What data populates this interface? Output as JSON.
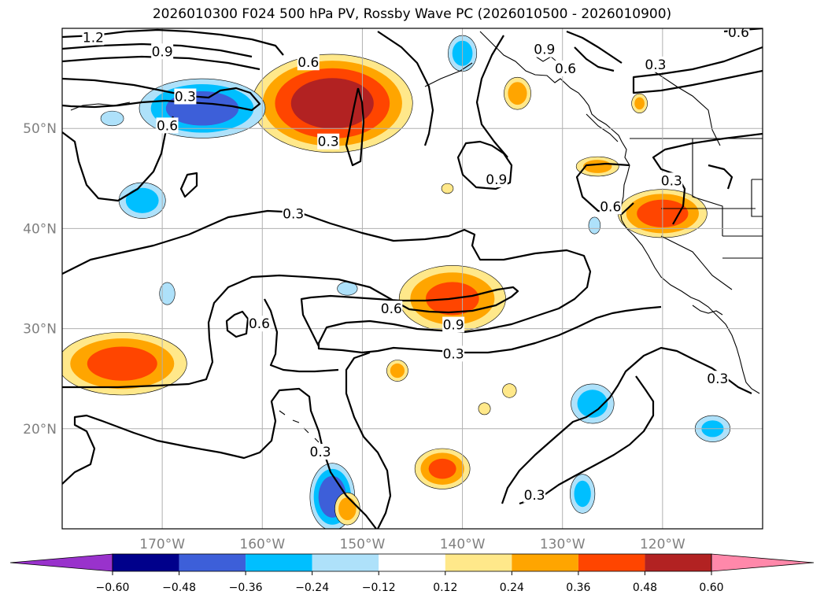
{
  "chart_data": {
    "type": "heatmap",
    "title": "2026010300 F024 500 hPa PV, Rossby Wave PC (2026010500 - 2026010900)",
    "map": {
      "lon_range": [
        -180,
        -110
      ],
      "lat_range": [
        10,
        60
      ]
    },
    "lon_ticks": [
      {
        "value": -170,
        "label": "170°W"
      },
      {
        "value": -160,
        "label": "160°W"
      },
      {
        "value": -150,
        "label": "150°W"
      },
      {
        "value": -140,
        "label": "140°W"
      },
      {
        "value": -130,
        "label": "130°W"
      },
      {
        "value": -120,
        "label": "120°W"
      }
    ],
    "lat_ticks": [
      {
        "value": 50,
        "label": "50°N"
      },
      {
        "value": 40,
        "label": "40°N"
      },
      {
        "value": 30,
        "label": "30°N"
      },
      {
        "value": 20,
        "label": "20°N"
      }
    ],
    "colorbar": {
      "levels": [
        -0.6,
        -0.48,
        -0.36,
        -0.24,
        -0.12,
        0.12,
        0.24,
        0.36,
        0.48,
        0.6
      ],
      "labels": [
        "−0.60",
        "−0.48",
        "−0.36",
        "−0.24",
        "−0.12",
        "0.12",
        "0.24",
        "0.36",
        "0.48",
        "0.60"
      ],
      "colors": [
        "#9932cc",
        "#00008b",
        "#3d5fd9",
        "#00bfff",
        "#aee1fa",
        "#ffffff",
        "#ffe88a",
        "#ffa500",
        "#ff4500",
        "#b22222",
        "#ff88aa"
      ],
      "extend": "both"
    },
    "contour_labels": [
      {
        "text": "1.2",
        "lon": -176.9,
        "lat": 59.1
      },
      {
        "text": "0.9",
        "lon": -170.0,
        "lat": 57.7
      },
      {
        "text": "0.6",
        "lon": -155.4,
        "lat": 56.6
      },
      {
        "text": "0.3",
        "lon": -167.7,
        "lat": 53.2
      },
      {
        "text": "0.6",
        "lon": -169.5,
        "lat": 50.3
      },
      {
        "text": "0.3",
        "lon": -153.4,
        "lat": 48.7
      },
      {
        "text": "0.9",
        "lon": -131.8,
        "lat": 57.9
      },
      {
        "text": "0.6",
        "lon": -129.7,
        "lat": 56.0
      },
      {
        "text": "0.3",
        "lon": -120.7,
        "lat": 56.4
      },
      {
        "text": "0.6",
        "lon": -112.4,
        "lat": 59.6
      },
      {
        "text": "0.9",
        "lon": -136.6,
        "lat": 44.9
      },
      {
        "text": "0.3",
        "lon": -119.1,
        "lat": 44.8
      },
      {
        "text": "0.6",
        "lon": -125.2,
        "lat": 42.2
      },
      {
        "text": "0.3",
        "lon": -156.9,
        "lat": 41.5
      },
      {
        "text": "0.6",
        "lon": -160.3,
        "lat": 30.5
      },
      {
        "text": "0.6",
        "lon": -147.1,
        "lat": 32.0
      },
      {
        "text": "0.9",
        "lon": -140.9,
        "lat": 30.4
      },
      {
        "text": "0.3",
        "lon": -140.9,
        "lat": 27.5
      },
      {
        "text": "0.3",
        "lon": -154.2,
        "lat": 17.7
      },
      {
        "text": "0.3",
        "lon": -132.8,
        "lat": 13.4
      },
      {
        "text": "0.3",
        "lon": -114.5,
        "lat": 25.0
      }
    ],
    "anomalies": [
      {
        "lon": -153,
        "lat": 52.5,
        "value": 0.55,
        "rx": 8.5,
        "ry": 5.2
      },
      {
        "lon": -166,
        "lat": 52.0,
        "value": -0.42,
        "rx": 6.8,
        "ry": 3.2
      },
      {
        "lon": -174,
        "lat": 26.5,
        "value": 0.4,
        "rx": 7.0,
        "ry": 3.4
      },
      {
        "lon": -141,
        "lat": 33.0,
        "value": 0.38,
        "rx": 5.8,
        "ry": 3.6
      },
      {
        "lon": -120,
        "lat": 41.5,
        "value": 0.42,
        "rx": 4.8,
        "ry": 2.6
      },
      {
        "lon": -153,
        "lat": 13.2,
        "value": -0.45,
        "rx": 2.4,
        "ry": 3.6
      },
      {
        "lon": -142,
        "lat": 16.0,
        "value": 0.38,
        "rx": 3.0,
        "ry": 2.2
      },
      {
        "lon": -172,
        "lat": 42.8,
        "value": -0.3,
        "rx": 2.6,
        "ry": 2.0
      },
      {
        "lon": -140,
        "lat": 57.5,
        "value": -0.3,
        "rx": 1.6,
        "ry": 2.0
      },
      {
        "lon": -127,
        "lat": 22.5,
        "value": -0.3,
        "rx": 2.4,
        "ry": 2.2
      },
      {
        "lon": -128,
        "lat": 13.5,
        "value": -0.28,
        "rx": 1.4,
        "ry": 2.2
      },
      {
        "lon": -115,
        "lat": 20.0,
        "value": -0.26,
        "rx": 2.0,
        "ry": 1.5
      },
      {
        "lon": -134.5,
        "lat": 53.5,
        "value": 0.3,
        "rx": 1.5,
        "ry": 1.8
      },
      {
        "lon": -126.5,
        "lat": 46.2,
        "value": 0.28,
        "rx": 2.4,
        "ry": 1.1
      },
      {
        "lon": -151.5,
        "lat": 12.0,
        "value": 0.3,
        "rx": 1.4,
        "ry": 1.8
      },
      {
        "lon": -146.5,
        "lat": 25.8,
        "value": 0.28,
        "rx": 1.2,
        "ry": 1.2
      },
      {
        "lon": -175,
        "lat": 51.0,
        "value": -0.18,
        "rx": 1.4,
        "ry": 0.9
      },
      {
        "lon": -169.5,
        "lat": 33.5,
        "value": -0.22,
        "rx": 0.9,
        "ry": 1.3
      },
      {
        "lon": -151.5,
        "lat": 34.0,
        "value": -0.2,
        "rx": 1.2,
        "ry": 0.8
      },
      {
        "lon": -122.3,
        "lat": 52.5,
        "value": 0.26,
        "rx": 0.9,
        "ry": 1.1
      },
      {
        "lon": -126.8,
        "lat": 40.3,
        "value": -0.2,
        "rx": 0.7,
        "ry": 1.0
      },
      {
        "lon": -135.3,
        "lat": 23.8,
        "value": 0.24,
        "rx": 0.8,
        "ry": 0.8
      },
      {
        "lon": -137.8,
        "lat": 22.0,
        "value": 0.22,
        "rx": 0.7,
        "ry": 0.7
      },
      {
        "lon": -141.5,
        "lat": 44.0,
        "value": 0.2,
        "rx": 0.7,
        "ry": 0.6
      }
    ]
  }
}
